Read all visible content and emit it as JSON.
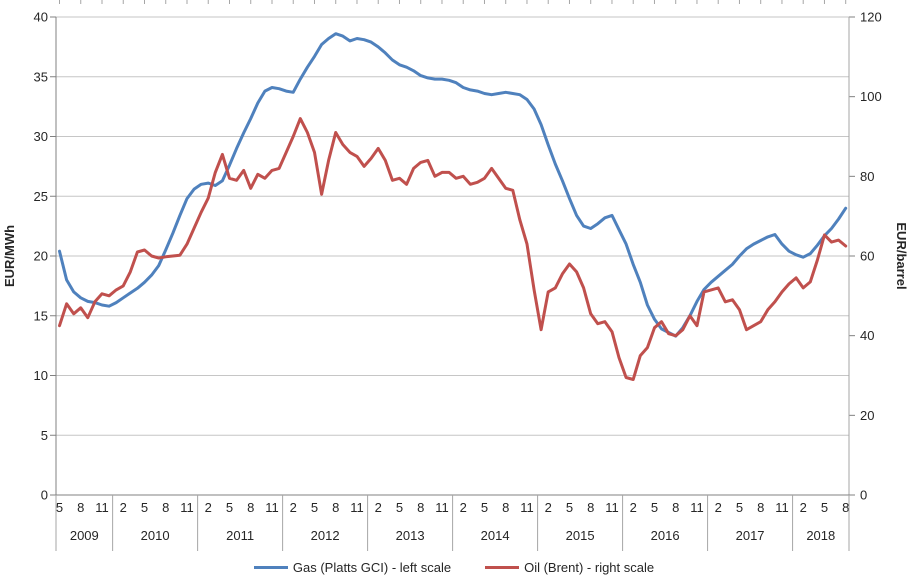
{
  "figure": {
    "kind": "excel-style dual-axis line chart",
    "legend": {
      "gas_label": "Gas (Platts GCI) - left scale",
      "oil_label": "Oil (Brent) - right scale"
    },
    "colors": {
      "gas_line": "#4F81BD",
      "oil_line": "#C0504D",
      "gridline": "#C6C6C6",
      "axis_line": "#808080",
      "tick_text": "#262626"
    }
  },
  "chart_data": {
    "type": "line",
    "frequency": "monthly",
    "x_start": "2009-05",
    "x_end": "2018-08",
    "grid": "horizontal",
    "legend_position": "bottom",
    "x_axis": {
      "years": [
        {
          "year": "2009",
          "month_labels": [
            5,
            8,
            11
          ]
        },
        {
          "year": "2010",
          "month_labels": [
            2,
            5,
            8,
            11
          ]
        },
        {
          "year": "2011",
          "month_labels": [
            2,
            5,
            8,
            11
          ]
        },
        {
          "year": "2012",
          "month_labels": [
            2,
            5,
            8,
            11
          ]
        },
        {
          "year": "2013",
          "month_labels": [
            2,
            5,
            8,
            11
          ]
        },
        {
          "year": "2014",
          "month_labels": [
            2,
            5,
            8,
            11
          ]
        },
        {
          "year": "2015",
          "month_labels": [
            2,
            5,
            8,
            11
          ]
        },
        {
          "year": "2016",
          "month_labels": [
            2,
            5,
            8,
            11
          ]
        },
        {
          "year": "2017",
          "month_labels": [
            2,
            5,
            8,
            11
          ]
        },
        {
          "year": "2018",
          "month_labels": [
            2,
            5,
            8
          ]
        }
      ]
    },
    "y_left": {
      "label": "EUR/MWh",
      "min": 0,
      "max": 40,
      "step": 5,
      "ticks": [
        0,
        5,
        10,
        15,
        20,
        25,
        30,
        35,
        40
      ]
    },
    "y_right": {
      "label": "EUR/barrel",
      "min": 0,
      "max": 120,
      "step": 20,
      "ticks": [
        0,
        20,
        40,
        60,
        80,
        100,
        120
      ]
    },
    "series": [
      {
        "name": "Gas (Platts GCI) - left scale",
        "axis": "left",
        "color": "#4F81BD",
        "values": [
          20.4,
          18.0,
          17.0,
          16.5,
          16.2,
          16.1,
          15.9,
          15.8,
          16.1,
          16.5,
          16.9,
          17.3,
          17.8,
          18.4,
          19.2,
          20.5,
          21.9,
          23.4,
          24.8,
          25.6,
          26.0,
          26.1,
          25.9,
          26.3,
          27.6,
          29.0,
          30.3,
          31.5,
          32.8,
          33.8,
          34.1,
          34.0,
          33.8,
          33.7,
          34.8,
          35.8,
          36.7,
          37.7,
          38.2,
          38.6,
          38.4,
          38.0,
          38.2,
          38.1,
          37.9,
          37.5,
          37.0,
          36.4,
          36.0,
          35.8,
          35.5,
          35.1,
          34.9,
          34.8,
          34.8,
          34.7,
          34.5,
          34.1,
          33.9,
          33.8,
          33.6,
          33.5,
          33.6,
          33.7,
          33.6,
          33.5,
          33.1,
          32.3,
          31.0,
          29.3,
          27.7,
          26.3,
          24.8,
          23.4,
          22.5,
          22.3,
          22.7,
          23.2,
          23.4,
          22.2,
          21.0,
          19.3,
          17.8,
          15.9,
          14.7,
          13.9,
          13.6,
          13.3,
          14.0,
          15.0,
          16.2,
          17.2,
          17.8,
          18.3,
          18.8,
          19.3,
          20.0,
          20.6,
          21.0,
          21.3,
          21.6,
          21.8,
          21.0,
          20.4,
          20.1,
          19.9,
          20.2,
          20.9,
          21.7,
          22.3,
          23.1,
          24.0
        ]
      },
      {
        "name": "Oil (Brent) - right scale",
        "axis": "right",
        "color": "#C0504D",
        "values": [
          42.5,
          48.0,
          45.5,
          47.0,
          44.5,
          48.5,
          50.5,
          50.0,
          51.5,
          52.5,
          56.0,
          61.0,
          61.5,
          60.0,
          59.5,
          59.8,
          60.0,
          60.2,
          63.0,
          67.0,
          71.0,
          74.5,
          81.0,
          85.5,
          79.5,
          79.0,
          81.5,
          77.0,
          80.5,
          79.5,
          81.5,
          82.0,
          86.0,
          90.0,
          94.5,
          91.0,
          86.0,
          75.5,
          84.0,
          91.0,
          88.0,
          86.0,
          85.0,
          82.5,
          84.5,
          87.0,
          84.0,
          79.0,
          79.5,
          78.0,
          82.0,
          83.5,
          84.0,
          80.0,
          81.0,
          81.0,
          79.5,
          80.0,
          78.0,
          78.5,
          79.5,
          82.0,
          79.5,
          77.0,
          76.5,
          69.0,
          63.0,
          51.5,
          41.5,
          51.0,
          52.0,
          55.5,
          58.0,
          56.0,
          52.0,
          45.5,
          43.0,
          43.5,
          41.0,
          34.5,
          29.5,
          29.0,
          35.0,
          37.0,
          42.0,
          43.5,
          40.5,
          40.0,
          41.5,
          45.0,
          42.5,
          51.0,
          51.5,
          52.0,
          48.5,
          49.0,
          46.5,
          41.5,
          42.5,
          43.5,
          46.5,
          48.5,
          51.0,
          53.0,
          54.5,
          52.0,
          53.5,
          59.0,
          65.3,
          63.5,
          64.0,
          62.5
        ]
      }
    ]
  }
}
